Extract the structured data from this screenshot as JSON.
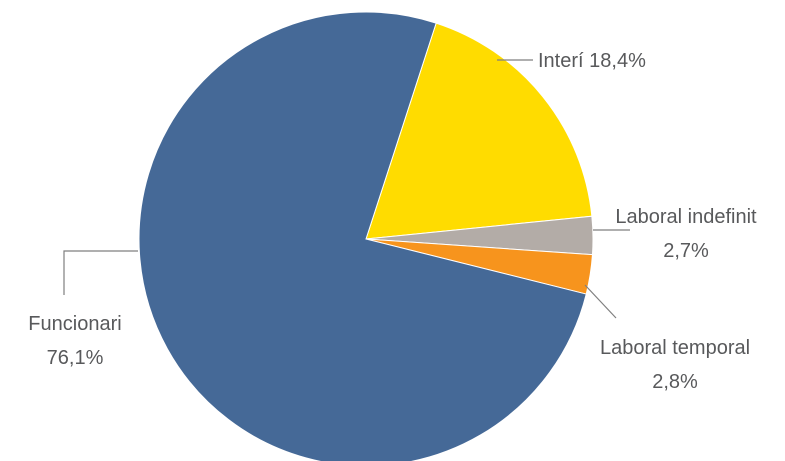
{
  "chart_data": {
    "type": "pie",
    "title": "",
    "slices": [
      {
        "label": "Interí",
        "value": 18.4,
        "value_text": "18,4%",
        "color": "#ffdc00"
      },
      {
        "label": "Laboral indefinit",
        "value": 2.7,
        "value_text": "2,7%",
        "color": "#b3aca7"
      },
      {
        "label": "Laboral temporal",
        "value": 2.8,
        "value_text": "2,8%",
        "color": "#f7941d"
      },
      {
        "label": "Funcionari",
        "value": 76.1,
        "value_text": "76,1%",
        "color": "#456997"
      }
    ],
    "legend": "none",
    "data_labels": "outside with leader lines"
  }
}
